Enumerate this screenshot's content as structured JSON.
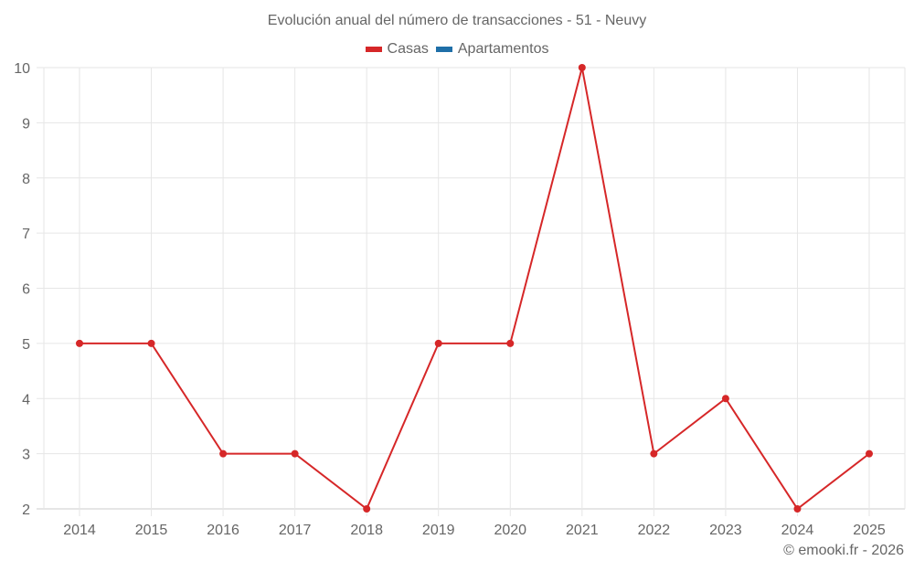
{
  "title": "Evolución anual del número de transacciones - 51 - Neuvy",
  "legend": [
    {
      "label": "Casas",
      "color": "#d62728"
    },
    {
      "label": "Apartamentos",
      "color": "#1f6fa8"
    }
  ],
  "credit": "© emooki.fr - 2026",
  "chart_data": {
    "type": "line",
    "title": "Evolución anual del número de transacciones - 51 - Neuvy",
    "xlabel": "",
    "ylabel": "",
    "categories": [
      "2014",
      "2015",
      "2016",
      "2017",
      "2018",
      "2019",
      "2020",
      "2021",
      "2022",
      "2023",
      "2024",
      "2025"
    ],
    "series": [
      {
        "name": "Casas",
        "color": "#d62728",
        "values": [
          5,
          5,
          3,
          3,
          2,
          5,
          5,
          10,
          3,
          4,
          2,
          3
        ]
      },
      {
        "name": "Apartamentos",
        "color": "#1f6fa8",
        "values": []
      }
    ],
    "ylim": [
      2,
      10
    ],
    "yticks": [
      2,
      3,
      4,
      5,
      6,
      7,
      8,
      9,
      10
    ],
    "grid": true,
    "legend_position": "top"
  }
}
